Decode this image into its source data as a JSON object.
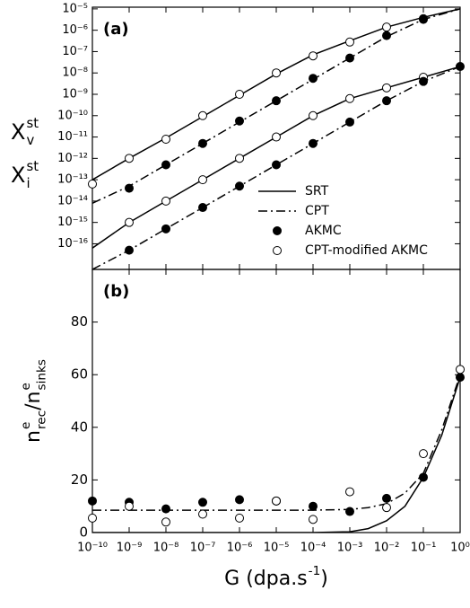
{
  "chart_data": [
    {
      "type": "line",
      "panel_label": "(a)",
      "log_y": true,
      "color": "#000000",
      "x": [
        1e-10,
        1e-09,
        1e-08,
        1e-07,
        1e-06,
        1e-05,
        0.0001,
        0.001,
        0.01,
        0.1,
        1
      ],
      "xlim": [
        1e-10,
        1
      ],
      "xticks": [
        1e-10,
        1e-09,
        1e-08,
        1e-07,
        1e-06,
        1e-05,
        0.0001,
        0.001,
        0.01,
        0.1,
        1
      ],
      "ylim": [
        6.3e-18,
        1.2e-05
      ],
      "yticks": [
        {
          "value": 1e-05,
          "label": "10⁻⁵"
        },
        {
          "value": 1e-06,
          "label": "10⁻⁶"
        },
        {
          "value": 1e-07,
          "label": "10⁻⁷"
        },
        {
          "value": 1e-08,
          "label": "10⁻⁸"
        },
        {
          "value": 1e-09,
          "label": "10⁻⁹"
        },
        {
          "value": 1e-10,
          "label": "10⁻¹⁰"
        },
        {
          "value": 1e-11,
          "label": "10⁻¹¹"
        },
        {
          "value": 1e-12,
          "label": "10⁻¹²"
        },
        {
          "value": 1e-13,
          "label": "10⁻¹³"
        },
        {
          "value": 1e-14,
          "label": "10⁻¹⁴"
        },
        {
          "value": 1e-15,
          "label": "10⁻¹⁵"
        },
        {
          "value": 1e-16,
          "label": "10⁻¹⁶"
        }
      ],
      "ylabels": [
        {
          "base": "X",
          "sup": "st",
          "sub": "v"
        },
        {
          "base": "X",
          "sup": "st",
          "sub": "i"
        }
      ],
      "legend": [
        {
          "name": "SRT",
          "style": "solid"
        },
        {
          "name": "CPT",
          "style": "dash-dot"
        },
        {
          "name": "AKMC",
          "style": "filled"
        },
        {
          "name": "CPT-modified AKMC",
          "style": "open"
        }
      ],
      "series": [
        {
          "style": "solid",
          "values": [
            1e-13,
            1e-12,
            9e-12,
            9e-11,
            9e-10,
            9e-09,
            7e-08,
            3.2e-07,
            1.4e-06,
            4e-06,
            1e-05
          ]
        },
        {
          "style": "dash-dot",
          "values": [
            7.9e-15,
            5e-14,
            5e-13,
            5e-12,
            5e-11,
            5e-10,
            5e-09,
            5e-08,
            5e-07,
            3.2e-06,
            1e-05
          ]
        },
        {
          "style": "solid",
          "values": [
            6.3e-17,
            1e-15,
            1e-14,
            1e-13,
            1e-12,
            1e-11,
            1e-10,
            6.3e-10,
            2e-09,
            6.3e-09,
            2e-08
          ]
        },
        {
          "style": "dash-dot",
          "values": [
            6.3e-18,
            5e-17,
            5e-16,
            5e-15,
            5e-14,
            5e-13,
            5e-12,
            5e-11,
            5e-10,
            4e-09,
            2e-08
          ]
        },
        {
          "style": "open",
          "values": [
            6.3e-14,
            1e-12,
            7.9e-12,
            1e-10,
            1e-09,
            1e-08,
            6.3e-08,
            2.8e-07,
            1.4e-06,
            3.5e-06,
            null
          ]
        },
        {
          "style": "filled",
          "values": [
            null,
            4e-14,
            5e-13,
            5e-12,
            5.6e-11,
            5e-10,
            5.6e-09,
            5e-08,
            5.6e-07,
            3.2e-06,
            null
          ]
        },
        {
          "style": "open",
          "values": [
            null,
            1e-15,
            1e-14,
            1e-13,
            1e-12,
            1e-11,
            1e-10,
            6.3e-10,
            2e-09,
            6.3e-09,
            null
          ]
        },
        {
          "style": "filled",
          "values": [
            null,
            5e-17,
            5e-16,
            5e-15,
            5e-14,
            5e-13,
            5e-12,
            5e-11,
            5e-10,
            4e-09,
            2e-08
          ]
        }
      ]
    },
    {
      "type": "line",
      "panel_label": "(b)",
      "log_y": false,
      "color": "#000000",
      "x": [
        1e-10,
        1e-09,
        1e-08,
        1e-07,
        1e-06,
        1e-05,
        0.0001,
        0.001,
        0.01,
        0.1,
        1
      ],
      "xlim": [
        1e-10,
        1
      ],
      "xticks": [
        {
          "value": 1e-10,
          "label": "10⁻¹⁰"
        },
        {
          "value": 1e-09,
          "label": "10⁻⁹"
        },
        {
          "value": 1e-08,
          "label": "10⁻⁸"
        },
        {
          "value": 1e-07,
          "label": "10⁻⁷"
        },
        {
          "value": 1e-06,
          "label": "10⁻⁶"
        },
        {
          "value": 1e-05,
          "label": "10⁻⁵"
        },
        {
          "value": 0.0001,
          "label": "10⁻⁴"
        },
        {
          "value": 0.001,
          "label": "10⁻³"
        },
        {
          "value": 0.01,
          "label": "10⁻²"
        },
        {
          "value": 0.1,
          "label": "10⁻¹"
        },
        {
          "value": 1,
          "label": "10⁰"
        }
      ],
      "ylim": [
        0,
        100
      ],
      "yticks": [
        0,
        20,
        40,
        60,
        80
      ],
      "xlabel": [
        {
          "base": "G (dpa.s",
          "sup": "-1"
        },
        {
          "base": ")"
        }
      ],
      "ylabel": [
        {
          "base": "n",
          "sup": "e",
          "sub": "rec"
        },
        {
          "base": "/n",
          "sup": "e",
          "sub": "sinks"
        }
      ],
      "series": [
        {
          "style": "solid",
          "x": [
            1e-10,
            1e-09,
            1e-08,
            1e-07,
            1e-06,
            1e-05,
            0.0001,
            0.001,
            0.00316,
            0.01,
            0.0316,
            0.1,
            0.316,
            1
          ],
          "values": [
            0,
            0,
            0,
            0,
            0,
            0,
            0,
            0.3,
            1.5,
            4.5,
            10,
            21,
            37,
            59
          ]
        },
        {
          "style": "dash-dot",
          "x": [
            1e-10,
            1e-09,
            1e-08,
            1e-07,
            1e-06,
            1e-05,
            0.0001,
            0.001,
            0.00316,
            0.01,
            0.0316,
            0.1,
            0.316,
            1
          ],
          "values": [
            8.5,
            8.5,
            8.5,
            8.5,
            8.5,
            8.5,
            8.5,
            8.8,
            9.5,
            11,
            15,
            22.5,
            39,
            60
          ]
        },
        {
          "style": "filled",
          "values": [
            12,
            11.5,
            9,
            11.5,
            12.5,
            12,
            10,
            8,
            13,
            21,
            59
          ]
        },
        {
          "style": "open",
          "values": [
            5.5,
            10,
            4,
            7,
            5.5,
            12,
            5,
            15.5,
            9.5,
            30,
            62
          ]
        }
      ]
    }
  ]
}
